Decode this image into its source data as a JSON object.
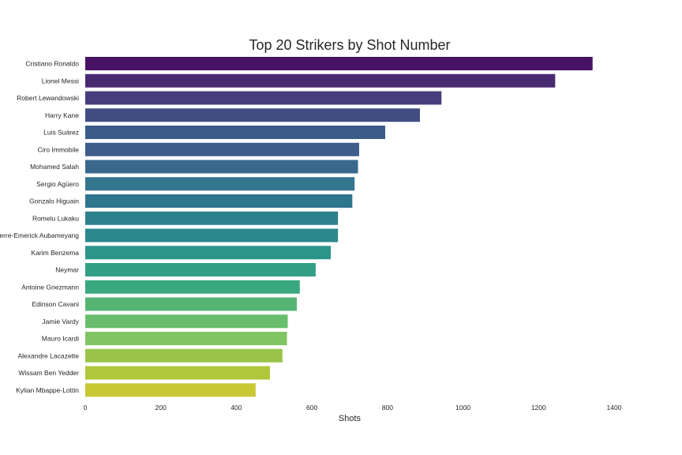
{
  "chart_data": {
    "type": "bar",
    "orientation": "horizontal",
    "title": "Top 20 Strikers by Shot Number",
    "xlabel": "Shots",
    "ylabel": "",
    "xlim": [
      0,
      1400
    ],
    "xticks": [
      0,
      200,
      400,
      600,
      800,
      1000,
      1200,
      1400
    ],
    "grid": false,
    "legend": "none",
    "colormap": "viridis",
    "categories": [
      "Cristiano Ronaldo",
      "Lionel Messi",
      "Robert Lewandowski",
      "Harry Kane",
      "Luis Suárez",
      "Ciro Immobile",
      "Mohamed Salah",
      "Sergio Agüero",
      "Gonzalo Higuain",
      "Romelu Lukaku",
      "Pierre-Emerick Aubameyang",
      "Karim Benzema",
      "Neymar",
      "Antoine Griezmann",
      "Edinson Cavani",
      "Jamie Vardy",
      "Mauro Icardi",
      "Alexandre Lacazette",
      "Wissam Ben Yedder",
      "Kylian Mbappe-Lottin"
    ],
    "values": [
      1343,
      1244,
      943,
      886,
      794,
      725,
      722,
      713,
      707,
      669,
      669,
      650,
      610,
      568,
      560,
      536,
      534,
      522,
      489,
      451
    ],
    "colors": [
      "#471164",
      "#482a70",
      "#463d7a",
      "#424d82",
      "#3b5b89",
      "#3e5d8a",
      "#38698c",
      "#34768d",
      "#30758e",
      "#2e808d",
      "#2b898c",
      "#2c958a",
      "#31a087",
      "#3aa97f",
      "#55b474",
      "#69be6e",
      "#81c463",
      "#9ac449",
      "#b0c63b",
      "#c7c832"
    ]
  }
}
